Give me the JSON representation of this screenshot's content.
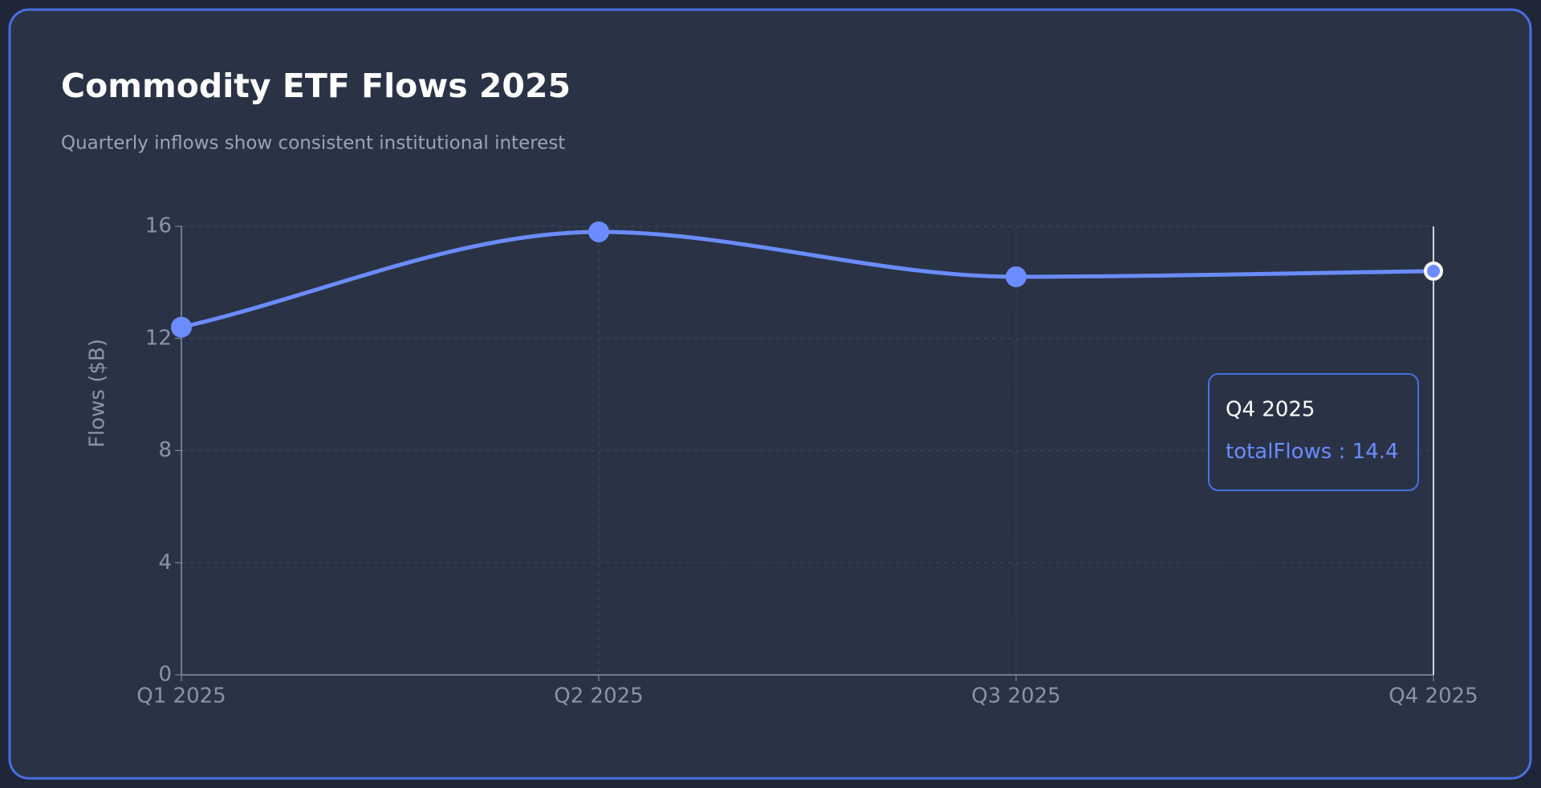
{
  "chart_data": {
    "type": "line",
    "title": "Commodity ETF Flows 2025",
    "subtitle": "Quarterly inflows show consistent institutional interest",
    "y_label": "Flows ($B)",
    "categories": [
      "Q1 2025",
      "Q2 2025",
      "Q3 2025",
      "Q4 2025"
    ],
    "series": [
      {
        "name": "totalFlows",
        "color": "#6b8cff",
        "values": [
          12.4,
          15.8,
          14.2,
          14.4
        ]
      }
    ],
    "ylim": [
      0,
      16
    ],
    "yticks": [
      0,
      4,
      8,
      12,
      16
    ],
    "grid": true,
    "tooltip_separator": " : "
  }
}
